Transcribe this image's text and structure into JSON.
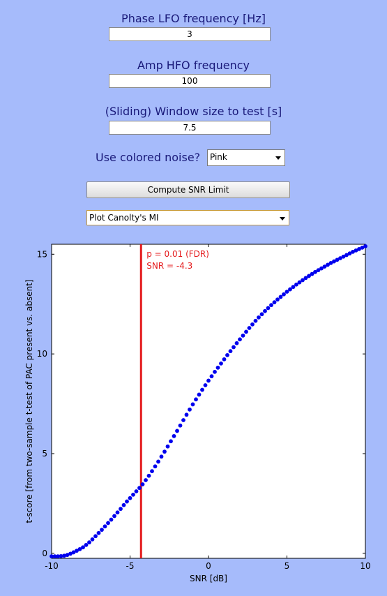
{
  "form": {
    "phase_label": "Phase LFO frequency [Hz]",
    "phase_value": "3",
    "amp_label": "Amp HFO frequency",
    "amp_value": "100",
    "window_label": "(Sliding) Window size to test [s]",
    "window_value": "7.5",
    "noise_label": "Use colored noise?",
    "noise_value": "Pink",
    "compute_label": "Compute SNR Limit",
    "plot_select_value": "Plot Canolty's MI"
  },
  "colors": {
    "background": "#a6bbfb",
    "series": "#0000ee",
    "threshold": "#e41a1c"
  },
  "chart_data": {
    "type": "scatter",
    "xlabel": "SNR [dB]",
    "ylabel": "t-score [from two-sample t-test of PAC present vs. absent]",
    "xlim": [
      -10,
      10
    ],
    "ylim": [
      -0.25,
      15.5
    ],
    "xticks": [
      "-10",
      "-5",
      "0",
      "5",
      "10"
    ],
    "yticks": [
      "0",
      "5",
      "10",
      "15"
    ],
    "xtick_values": [
      -10,
      -5,
      0,
      5,
      10
    ],
    "ytick_values": [
      0,
      5,
      10,
      15
    ],
    "grid": false,
    "series": [
      {
        "x": [
          -10,
          -9.8,
          -9.6,
          -9.4,
          -9.2,
          -9,
          -8.8,
          -8.6,
          -8.4,
          -8.2,
          -8,
          -7.8,
          -7.6,
          -7.4,
          -7.2,
          -7,
          -6.8,
          -6.6,
          -6.4,
          -6.2,
          -6,
          -5.8,
          -5.6,
          -5.4,
          -5.2,
          -5,
          -4.8,
          -4.6,
          -4.4,
          -4.2,
          -4,
          -3.8,
          -3.6,
          -3.4,
          -3.2,
          -3,
          -2.8,
          -2.6,
          -2.4,
          -2.2,
          -2,
          -1.8,
          -1.6,
          -1.4,
          -1.2,
          -1,
          -0.8,
          -0.6,
          -0.4,
          -0.2,
          0,
          0.2,
          0.4,
          0.6,
          0.8,
          1,
          1.2,
          1.4,
          1.6,
          1.8,
          2,
          2.2,
          2.4,
          2.6,
          2.8,
          3,
          3.2,
          3.4,
          3.6,
          3.8,
          4,
          4.2,
          4.4,
          4.6,
          4.8,
          5,
          5.2,
          5.4,
          5.6,
          5.8,
          6,
          6.2,
          6.4,
          6.6,
          6.8,
          7,
          7.2,
          7.4,
          7.6,
          7.8,
          8,
          8.2,
          8.4,
          8.6,
          8.8,
          9,
          9.2,
          9.4,
          9.6,
          9.8,
          10
        ],
        "y": [
          -0.15,
          -0.15,
          -0.15,
          -0.14,
          -0.12,
          -0.08,
          -0.02,
          0.05,
          0.13,
          0.21,
          0.3,
          0.42,
          0.55,
          0.7,
          0.86,
          1.02,
          1.18,
          1.35,
          1.52,
          1.69,
          1.87,
          2.05,
          2.23,
          2.42,
          2.6,
          2.77,
          2.94,
          3.11,
          3.28,
          3.46,
          3.67,
          3.89,
          4.12,
          4.36,
          4.6,
          4.85,
          5.1,
          5.36,
          5.62,
          5.88,
          6.14,
          6.41,
          6.68,
          6.95,
          7.21,
          7.47,
          7.72,
          7.96,
          8.2,
          8.43,
          8.66,
          8.88,
          9.1,
          9.31,
          9.52,
          9.73,
          9.94,
          10.14,
          10.34,
          10.54,
          10.73,
          10.92,
          11.11,
          11.3,
          11.48,
          11.66,
          11.83,
          11.99,
          12.15,
          12.3,
          12.45,
          12.59,
          12.73,
          12.86,
          12.99,
          13.12,
          13.24,
          13.36,
          13.48,
          13.59,
          13.7,
          13.81,
          13.91,
          14.01,
          14.11,
          14.2,
          14.29,
          14.38,
          14.47,
          14.56,
          14.64,
          14.72,
          14.8,
          14.88,
          14.96,
          15.04,
          15.12,
          15.19,
          15.26,
          15.33,
          15.4
        ]
      }
    ],
    "threshold": {
      "x": -4.3,
      "annotation_line1": "p = 0.01 (FDR)",
      "annotation_line2": "SNR = -4.3"
    }
  }
}
